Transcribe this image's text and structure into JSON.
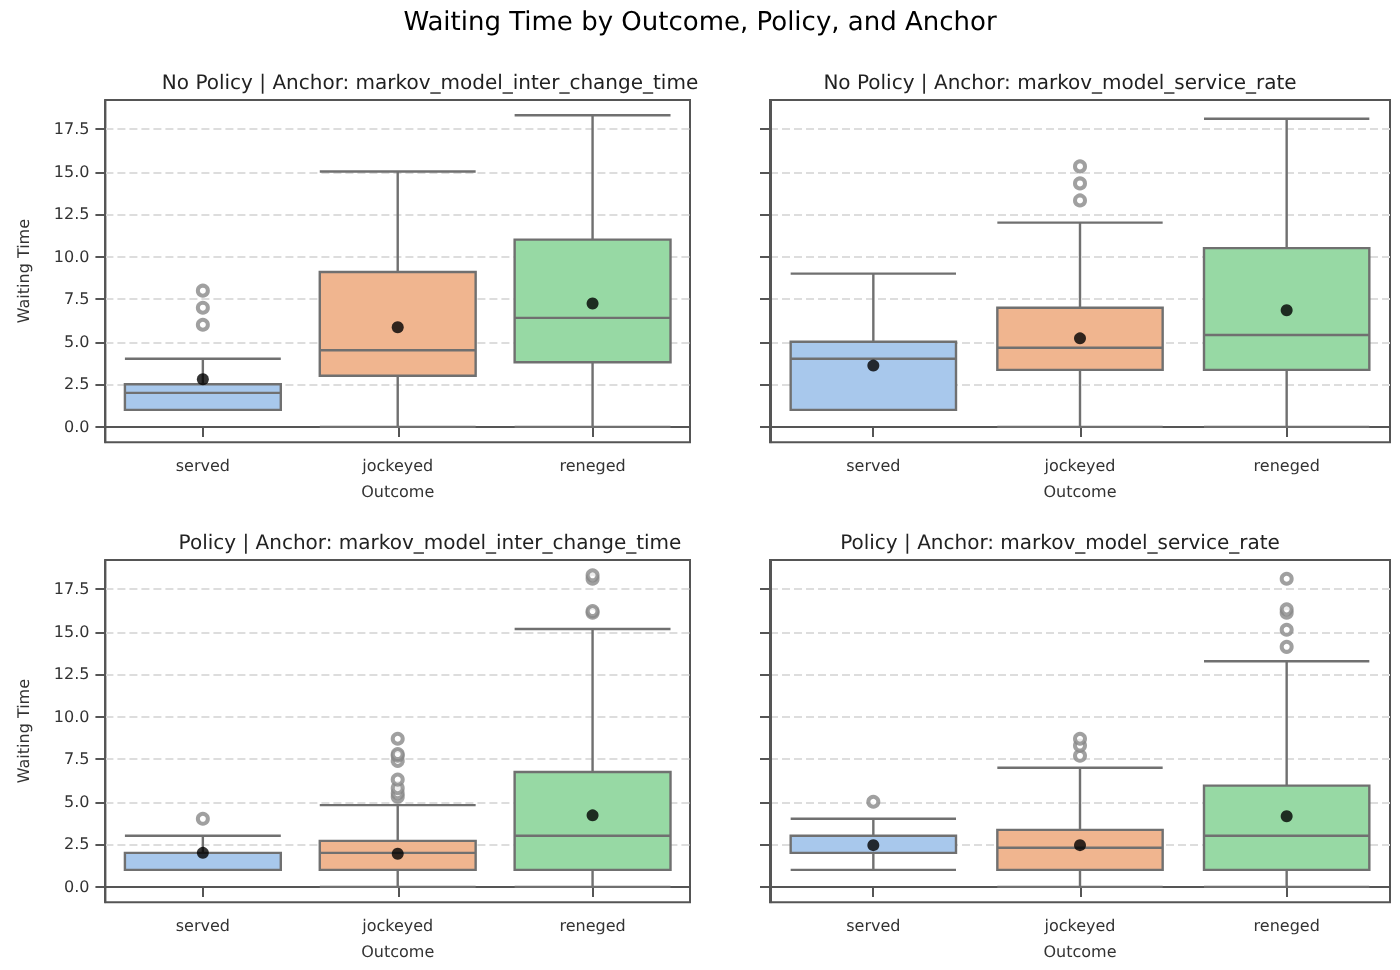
{
  "chart_data": [
    {
      "type": "box",
      "title": "No Policy | Anchor: markov_model_inter_change_time",
      "annotations": [
        "Waiting Time by Outcome, Policy, and Anchor"
      ],
      "xlabel": "Outcome",
      "ylabel": "Waiting Time",
      "categories": [
        "served",
        "jockeyed",
        "reneged"
      ],
      "colors": [
        "#a8c8ec",
        "#f0b58f",
        "#97d9a4"
      ],
      "ylim": [
        -0.9,
        19.2
      ],
      "yticks": [
        {
          "value": 0,
          "label": "0.0"
        },
        2.5,
        {
          "value": 5,
          "label": "5.0"
        },
        7.5,
        {
          "value": 10,
          "label": "10.0"
        },
        12.5,
        {
          "value": 15,
          "label": "15.0"
        },
        17.5
      ],
      "grid": "y",
      "marker": "circle",
      "boxes": [
        {
          "low": 1,
          "q1": 1,
          "median": 2,
          "q3": 2.5,
          "high": 4,
          "mean": 2.8,
          "outliers": [
            6,
            7,
            8
          ]
        },
        {
          "low": 0,
          "q1": 3,
          "median": 4.5,
          "q3": 9.1,
          "high": 15,
          "mean": 5.85
        },
        {
          "low": 0,
          "q1": 3.8,
          "median": 6.4,
          "q3": 11,
          "high": 18.3,
          "mean": 7.25
        }
      ]
    },
    {
      "type": "box",
      "title": "No Policy | Anchor: markov_model_service_rate",
      "xlabel": "Outcome",
      "categories": [
        "served",
        "jockeyed",
        "reneged"
      ],
      "colors": [
        "#a8c8ec",
        "#f0b58f",
        "#97d9a4"
      ],
      "ylim": [
        -0.9,
        19.2
      ],
      "yticks": [
        0,
        2.5,
        5,
        7.5,
        10,
        12.5,
        15,
        17.5
      ],
      "grid": "y",
      "marker": "circle",
      "tick_labels": "x",
      "boxes": [
        {
          "low": 1,
          "q1": 1,
          "median": 4,
          "q3": 5,
          "high": 9,
          "mean": 3.6
        },
        {
          "low": 0,
          "q1": 3.35,
          "median": 4.65,
          "q3": 7,
          "high": 12,
          "mean": 5.2,
          "outliers": [
            13.3,
            14.3,
            15.3
          ]
        },
        {
          "low": 0,
          "q1": 3.35,
          "median": 5.4,
          "q3": 10.5,
          "high": 18.1,
          "mean": 6.85
        }
      ]
    },
    {
      "type": "box",
      "title": "Policy | Anchor: markov_model_inter_change_time",
      "xlabel": "Outcome",
      "ylabel": "Waiting Time",
      "categories": [
        "served",
        "jockeyed",
        "reneged"
      ],
      "colors": [
        "#a8c8ec",
        "#f0b58f",
        "#97d9a4"
      ],
      "ylim": [
        -0.9,
        19.2
      ],
      "yticks": [
        {
          "value": 0,
          "label": "0.0"
        },
        2.5,
        {
          "value": 5,
          "label": "5.0"
        },
        7.5,
        {
          "value": 10,
          "label": "10.0"
        },
        12.5,
        {
          "value": 15,
          "label": "15.0"
        },
        17.5
      ],
      "grid": "y",
      "marker": "circle",
      "boxes": [
        {
          "low": 1,
          "q1": 1,
          "median": 2,
          "q3": 2,
          "high": 3,
          "mean": 2,
          "outliers": [
            4
          ]
        },
        {
          "low": 0,
          "q1": 1,
          "median": 2,
          "q3": 2.7,
          "high": 4.8,
          "mean": 1.95,
          "outliers": [
            5.3,
            5.5,
            5.8,
            6.3,
            7.4,
            7.7,
            7.8,
            8.7
          ]
        },
        {
          "low": 0,
          "q1": 1,
          "median": 3,
          "q3": 6.75,
          "high": 15.15,
          "mean": 4.2,
          "outliers": [
            16.1,
            16.2,
            18.1,
            18.3
          ]
        }
      ]
    },
    {
      "type": "box",
      "title": "Policy | Anchor: markov_model_service_rate",
      "xlabel": "Outcome",
      "categories": [
        "served",
        "jockeyed",
        "reneged"
      ],
      "colors": [
        "#a8c8ec",
        "#f0b58f",
        "#97d9a4"
      ],
      "ylim": [
        -0.9,
        19.2
      ],
      "yticks": [
        0,
        2.5,
        5,
        7.5,
        10,
        12.5,
        15,
        17.5
      ],
      "grid": "y",
      "marker": "circle",
      "tick_labels": "x",
      "boxes": [
        {
          "low": 1,
          "q1": 2,
          "median": 3,
          "q3": 3,
          "high": 4,
          "mean": 2.45,
          "outliers": [
            5
          ]
        },
        {
          "low": 0,
          "q1": 1,
          "median": 2.3,
          "q3": 3.35,
          "high": 7,
          "mean": 2.45,
          "outliers": [
            7.7,
            8.3,
            8.7
          ]
        },
        {
          "low": 0,
          "q1": 1,
          "median": 3,
          "q3": 5.95,
          "high": 13.25,
          "mean": 4.15,
          "outliers": [
            14.1,
            15.1,
            16.1,
            16.3,
            18.1
          ]
        }
      ]
    }
  ]
}
